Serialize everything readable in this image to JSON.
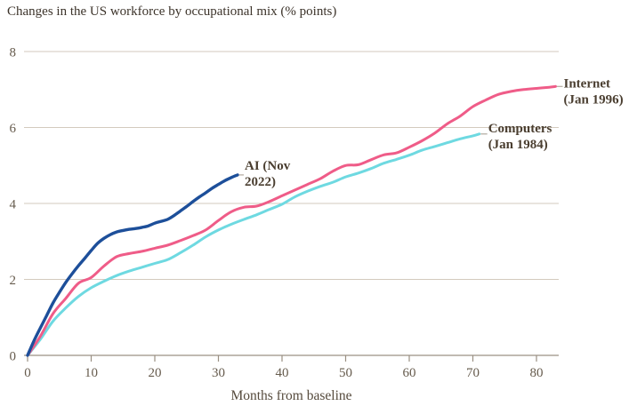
{
  "page": {
    "title": "Changes in the US workforce by occupational mix (% points)"
  },
  "colors": {
    "background": "#ffffff",
    "grid": "#d3cabe",
    "axis": "#9a9083",
    "tick_label": "#665b4d",
    "title_text": "#3c332a",
    "axis_label_text": "#554a3c",
    "annotation_text": "#4a3e30",
    "leader": "#b0a99e",
    "ai_blue": "#1d4f9a",
    "internet_pink": "#ef5c88",
    "computers_cyan": "#6ed9e1"
  },
  "chart_data": {
    "type": "line",
    "title": "Changes in the US workforce by occupational mix (% points)",
    "xlabel": "Months from baseline",
    "ylabel": "",
    "xlim": [
      0,
      84
    ],
    "ylim": [
      0,
      8
    ],
    "x_ticks": [
      0,
      10,
      20,
      30,
      40,
      50,
      60,
      70,
      80
    ],
    "y_ticks": [
      0,
      2,
      4,
      6,
      8
    ],
    "grid": "horizontal",
    "legend_position": "end-of-line",
    "series": [
      {
        "name": "AI (Nov 2022)",
        "label_lines": [
          "AI (Nov",
          "2022)"
        ],
        "color": "#1d4f9a",
        "x": [
          0,
          1,
          2,
          3,
          4,
          5,
          6,
          7,
          8,
          9,
          10,
          11,
          12,
          13,
          14,
          15,
          16,
          17,
          18,
          19,
          20,
          21,
          22,
          23,
          24,
          25,
          26,
          27,
          28,
          29,
          30,
          31,
          32,
          33
        ],
        "values": [
          0,
          0.38,
          0.72,
          1.05,
          1.38,
          1.66,
          1.92,
          2.15,
          2.36,
          2.56,
          2.76,
          2.95,
          3.08,
          3.18,
          3.25,
          3.29,
          3.32,
          3.34,
          3.37,
          3.41,
          3.48,
          3.53,
          3.58,
          3.68,
          3.8,
          3.92,
          4.05,
          4.17,
          4.28,
          4.4,
          4.5,
          4.6,
          4.68,
          4.75
        ]
      },
      {
        "name": "Internet (Jan 1996)",
        "label_lines": [
          "Internet",
          "(Jan 1996)"
        ],
        "color": "#ef5c88",
        "x": [
          0,
          2,
          4,
          6,
          8,
          10,
          12,
          14,
          16,
          18,
          20,
          22,
          24,
          26,
          28,
          30,
          32,
          34,
          36,
          38,
          40,
          42,
          44,
          46,
          48,
          50,
          52,
          54,
          56,
          58,
          60,
          62,
          64,
          66,
          68,
          70,
          72,
          74,
          76,
          78,
          80,
          82,
          83
        ],
        "values": [
          0,
          0.5,
          1.1,
          1.5,
          1.9,
          2.05,
          2.35,
          2.6,
          2.68,
          2.74,
          2.82,
          2.9,
          3.02,
          3.15,
          3.3,
          3.55,
          3.78,
          3.9,
          3.93,
          4.05,
          4.2,
          4.35,
          4.5,
          4.65,
          4.85,
          5.0,
          5.02,
          5.15,
          5.28,
          5.33,
          5.48,
          5.65,
          5.85,
          6.1,
          6.3,
          6.55,
          6.72,
          6.87,
          6.95,
          7.0,
          7.03,
          7.06,
          7.08
        ]
      },
      {
        "name": "Computers (Jan 1984)",
        "label_lines": [
          "Computers",
          "(Jan 1984)"
        ],
        "color": "#6ed9e1",
        "x": [
          0,
          2,
          4,
          6,
          8,
          10,
          12,
          14,
          16,
          18,
          20,
          22,
          24,
          26,
          28,
          30,
          32,
          34,
          36,
          38,
          40,
          42,
          44,
          46,
          48,
          50,
          52,
          54,
          56,
          58,
          60,
          62,
          64,
          66,
          68,
          70,
          71
        ],
        "values": [
          0,
          0.42,
          0.9,
          1.25,
          1.55,
          1.78,
          1.95,
          2.1,
          2.22,
          2.32,
          2.42,
          2.52,
          2.7,
          2.9,
          3.12,
          3.3,
          3.45,
          3.58,
          3.7,
          3.84,
          3.98,
          4.17,
          4.32,
          4.45,
          4.56,
          4.7,
          4.8,
          4.92,
          5.06,
          5.16,
          5.27,
          5.4,
          5.5,
          5.6,
          5.7,
          5.78,
          5.83
        ]
      }
    ]
  }
}
